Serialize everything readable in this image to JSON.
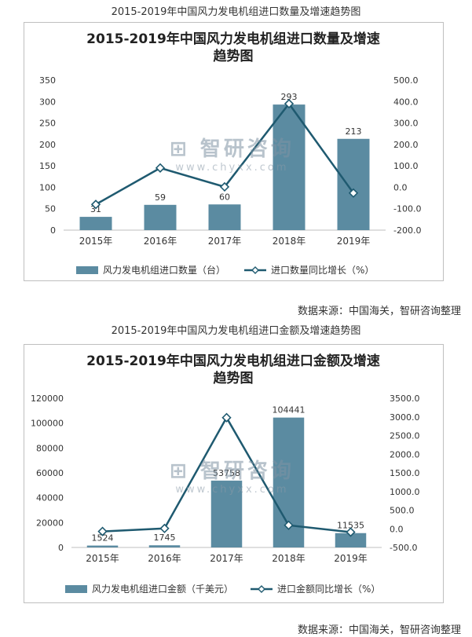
{
  "captions": {
    "top": "2015-2019年中国风力发电机组进口数量及增速趋势图",
    "bottom": "2015-2019年中国风力发电机组进口金额及增速趋势图"
  },
  "source": "数据来源：中国海关，智研咨询整理",
  "watermark": {
    "brand": "智研咨询",
    "url": "www.chyxx.com"
  },
  "chart_data": [
    {
      "type": "bar",
      "title_line1": "2015-2019年中国风力发电机组进口数量及增速",
      "title_line2": "趋势图",
      "categories": [
        "2015年",
        "2016年",
        "2017年",
        "2018年",
        "2019年"
      ],
      "series": [
        {
          "name": "风力发电机组进口数量（台）",
          "type": "bar",
          "axis": "left",
          "values": [
            31,
            59,
            60,
            293,
            213
          ],
          "labels": [
            "31",
            "59",
            "60",
            "293",
            "213"
          ],
          "color": "#5b8ba1"
        },
        {
          "name": "进口数量同比增长（%）",
          "type": "line",
          "axis": "right",
          "values": [
            -80,
            90,
            2,
            390,
            -27
          ],
          "color": "#1f5a70"
        }
      ],
      "y_left": {
        "min": 0,
        "max": 350,
        "ticks": [
          "0",
          "50",
          "100",
          "150",
          "200",
          "250",
          "300",
          "350"
        ]
      },
      "y_right": {
        "min": -200,
        "max": 500,
        "ticks": [
          "-200.0",
          "-100.0",
          "0.0",
          "100.0",
          "200.0",
          "300.0",
          "400.0",
          "500.0"
        ]
      },
      "legend": "bottom"
    },
    {
      "type": "bar",
      "title_line1": "2015-2019年中国风力发电机组进口金额及增速",
      "title_line2": "趋势图",
      "categories": [
        "2015年",
        "2016年",
        "2017年",
        "2018年",
        "2019年"
      ],
      "series": [
        {
          "name": "风力发电机组进口金额（千美元）",
          "type": "bar",
          "axis": "left",
          "values": [
            1524,
            1745,
            53758,
            104441,
            11535
          ],
          "labels": [
            "1524",
            "1745",
            "53758",
            "104441",
            "11535"
          ],
          "color": "#5b8ba1"
        },
        {
          "name": "进口金额同比增长（%）",
          "type": "line",
          "axis": "right",
          "values": [
            -70,
            10,
            2980,
            95,
            -89
          ],
          "color": "#1f5a70"
        }
      ],
      "y_left": {
        "min": 0,
        "max": 120000,
        "ticks": [
          "0",
          "20000",
          "40000",
          "60000",
          "80000",
          "100000",
          "120000"
        ]
      },
      "y_right": {
        "min": -500,
        "max": 3500,
        "ticks": [
          "-500.0",
          "0.0",
          "500.0",
          "1000.0",
          "1500.0",
          "2000.0",
          "2500.0",
          "3000.0",
          "3500.0"
        ]
      },
      "legend": "bottom"
    }
  ]
}
